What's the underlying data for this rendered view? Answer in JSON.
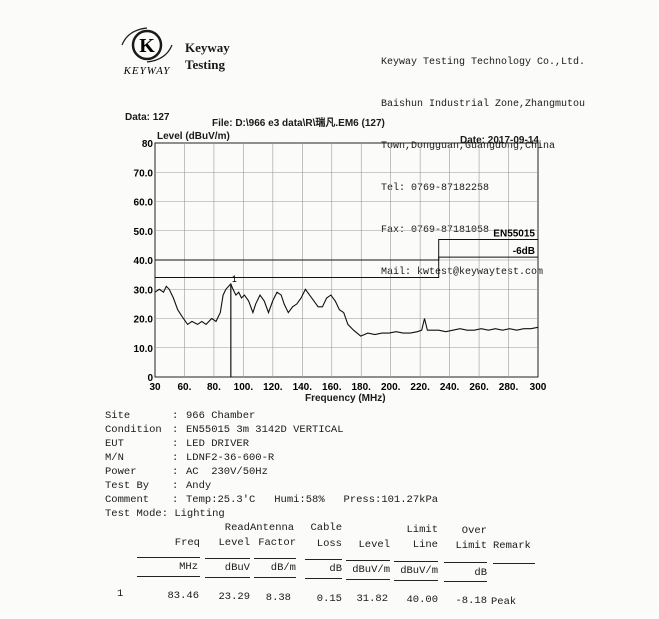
{
  "header": {
    "logo_letter": "K",
    "logo_text": "KEYWAY",
    "brand_line1": "Keyway",
    "brand_line2": "Testing",
    "company_lines": [
      "Keyway Testing Technology Co.,Ltd.",
      "Baishun Industrial Zone,Zhangmutou",
      "Town,Dongguan,Guangdong,China",
      "Tel: 0769-87182258",
      "Fax: 0769-87181058",
      "Mail: kwtest@keywaytest.com"
    ]
  },
  "meta": {
    "data_label": "Data: 127",
    "file_label": "File: D:\\966 e3 data\\R\\瑞凡.EM6  (127)",
    "date_label": "Date: 2017-09-14"
  },
  "chart_data": {
    "type": "line",
    "ylabel": "Level (dBuV/m)",
    "xlabel": "Frequency (MHz)",
    "xlim": [
      30,
      300
    ],
    "ylim": [
      0,
      80
    ],
    "x_ticks": [
      "30",
      "60.",
      "80.",
      "100.",
      "120.",
      "140.",
      "160.",
      "180.",
      "200.",
      "220.",
      "240.",
      "260.",
      "280.",
      "300"
    ],
    "y_ticks": [
      "0",
      "10.0",
      "20.0",
      "30.0",
      "40.0",
      "50.0",
      "60.0",
      "70.0",
      "80"
    ],
    "grid": true,
    "limit_lines": [
      {
        "name": "EN55015",
        "points": [
          [
            30,
            40
          ],
          [
            230,
            40
          ],
          [
            230,
            47
          ],
          [
            300,
            47
          ]
        ]
      },
      {
        "name": "-6dB",
        "points": [
          [
            30,
            34
          ],
          [
            230,
            34
          ],
          [
            230,
            41
          ],
          [
            300,
            41
          ]
        ]
      }
    ],
    "series": [
      {
        "x": [
          30,
          33,
          36,
          38,
          40,
          43,
          46,
          50,
          53,
          56,
          60,
          63,
          66,
          70,
          73,
          76,
          78,
          80,
          83.46,
          85,
          87,
          89,
          91,
          93,
          96,
          99,
          101,
          104,
          107,
          110,
          113,
          116,
          119,
          121,
          124,
          127,
          130,
          133,
          136,
          139,
          142,
          145,
          148,
          151,
          154,
          157,
          160,
          163,
          166,
          170,
          175,
          180,
          185,
          190,
          195,
          200,
          205,
          210,
          215,
          218,
          220,
          222,
          225,
          230,
          235,
          240,
          245,
          250,
          255,
          260,
          265,
          270,
          275,
          280,
          285,
          290,
          295,
          300
        ],
        "values": [
          29,
          30,
          29,
          31,
          30,
          27,
          23,
          20,
          18,
          19,
          18,
          19,
          18,
          20,
          19,
          22,
          28,
          30,
          31.82,
          30,
          28,
          29,
          27,
          28,
          26,
          22,
          25,
          28,
          26,
          22,
          26,
          29,
          28,
          25,
          22,
          24,
          25,
          27,
          30,
          28,
          26,
          24,
          24,
          27,
          28,
          26,
          23,
          22,
          18,
          16,
          14,
          15,
          14.5,
          15,
          15,
          15.5,
          15,
          15,
          15.5,
          16,
          20,
          16,
          16,
          16,
          15.5,
          16,
          16.5,
          16,
          16,
          16.5,
          16,
          16.5,
          16,
          16.5,
          16,
          16.5,
          16.5,
          17
        ]
      }
    ],
    "markers": [
      {
        "label": "1",
        "x": 83.46,
        "y": 31.82
      }
    ]
  },
  "info": [
    {
      "label": "Site",
      "value": "966 Chamber"
    },
    {
      "label": "Condition",
      "value": "EN55015 3m 3142D VERTICAL"
    },
    {
      "label": "EUT",
      "value": "LED DRIVER"
    },
    {
      "label": "M/N",
      "value": "LDNF2-36-600-R"
    },
    {
      "label": "Power",
      "value": "AC  230V/50Hz"
    },
    {
      "label": "Test By",
      "value": "Andy"
    },
    {
      "label": "Comment",
      "value": "Temp:25.3'C   Humi:58%   Press:101.27kPa"
    },
    {
      "label": "Test Mode",
      "value": "Lighting"
    }
  ],
  "table": {
    "header_top": [
      "",
      "Read",
      "Antenna",
      "Cable",
      "",
      "Limit",
      "Over",
      ""
    ],
    "header_mid": [
      "Freq",
      "Level",
      "Factor",
      "Loss",
      "Level",
      "Line",
      "Limit",
      "Remark"
    ],
    "units": [
      "MHz",
      "dBuV",
      "dB/m",
      "dB",
      "dBuV/m",
      "dBuV/m",
      "dB",
      ""
    ],
    "rows": [
      {
        "no": "1",
        "freq": "83.46",
        "read": "23.29",
        "ant": "8.38",
        "cable": "0.15",
        "level": "31.82",
        "limit": "40.00",
        "over": "-8.18",
        "remark": "Peak"
      }
    ]
  }
}
